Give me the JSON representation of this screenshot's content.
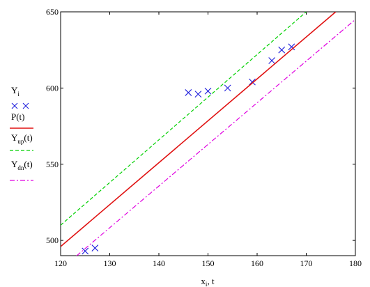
{
  "chart_data": {
    "type": "line",
    "title": "",
    "xlabel": "x_i, t",
    "ylabel": "",
    "xlim": [
      120,
      180
    ],
    "ylim": [
      490,
      650
    ],
    "x_ticks": [
      "120",
      "130",
      "140",
      "150",
      "160",
      "170",
      "180"
    ],
    "y_ticks": [
      "500",
      "550",
      "600",
      "650"
    ],
    "grid": false,
    "legend_position": "left",
    "series": [
      {
        "name": "Y_i",
        "kind": "scatter",
        "marker": "x",
        "color": "#1f1fdc",
        "x": [
          125,
          127,
          146,
          148,
          150,
          154,
          159,
          163,
          165,
          167
        ],
        "y": [
          493,
          495,
          597,
          596,
          598,
          600,
          604,
          618,
          625,
          627
        ]
      },
      {
        "name": "P(t)",
        "kind": "line",
        "style": "solid",
        "color": "#e01010",
        "x": [
          120,
          176
        ],
        "y": [
          496,
          650
        ]
      },
      {
        "name": "Y_up(t)",
        "kind": "line",
        "style": "dashed",
        "color": "#00d000",
        "x": [
          120,
          170
        ],
        "y": [
          510,
          650
        ]
      },
      {
        "name": "Y_dn(t)",
        "kind": "line",
        "style": "dashdot",
        "color": "#e000e0",
        "x": [
          120,
          180
        ],
        "y": [
          481,
          645
        ]
      }
    ]
  },
  "legend": [
    {
      "main": "Y",
      "sub": "i"
    },
    {
      "main": "P(t)",
      "sub": ""
    },
    {
      "main": "Y",
      "sub": "up",
      "suffix": "(t)"
    },
    {
      "main": "Y",
      "sub": "dn",
      "suffix": "(t)"
    }
  ],
  "axis_label": {
    "main": "x",
    "sub": "i",
    "suffix": ", t"
  }
}
